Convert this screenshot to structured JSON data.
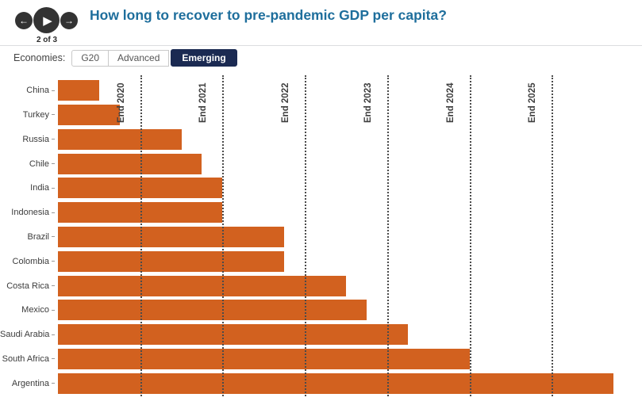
{
  "header": {
    "title": "How long to recover to pre-pandemic GDP per capita?",
    "nav": {
      "prev_icon": "arrow-left",
      "play_icon": "play",
      "next_icon": "arrow-right",
      "step_label": "2 of 3"
    }
  },
  "controls": {
    "label": "Economies:",
    "options": [
      {
        "label": "G20",
        "selected": false
      },
      {
        "label": "Advanced",
        "selected": false
      },
      {
        "label": "Emerging",
        "selected": true
      }
    ]
  },
  "colors": {
    "bar_orange": "#d2611f",
    "selected_navy": "#1b2a52",
    "title_blue": "#1e6e9c",
    "gridline_gray": "#4b4b4b"
  },
  "chart_data": {
    "type": "bar",
    "orientation": "horizontal",
    "title": "How long to recover to pre-pandemic GDP per capita?",
    "xlabel": "",
    "ylabel": "",
    "unit": "years after end-2019 (pre-pandemic baseline)",
    "categories": [
      "China",
      "Turkey",
      "Russia",
      "Chile",
      "India",
      "Indonesia",
      "Brazil",
      "Colombia",
      "Costa Rica",
      "Mexico",
      "Saudi Arabia",
      "South Africa",
      "Argentina"
    ],
    "values": [
      0.5,
      0.75,
      1.5,
      1.75,
      2.0,
      2.0,
      2.75,
      2.75,
      3.5,
      3.75,
      4.25,
      5.0,
      6.75
    ],
    "xlim": [
      0,
      7
    ],
    "grid": true,
    "gridlines": [
      {
        "label": "End 2020",
        "value": 1
      },
      {
        "label": "End 2021",
        "value": 2
      },
      {
        "label": "End 2022",
        "value": 3
      },
      {
        "label": "End 2023",
        "value": 4
      },
      {
        "label": "End 2024",
        "value": 5
      },
      {
        "label": "End 2025",
        "value": 6
      }
    ],
    "bar_color": "#d2611f",
    "legend": null
  }
}
